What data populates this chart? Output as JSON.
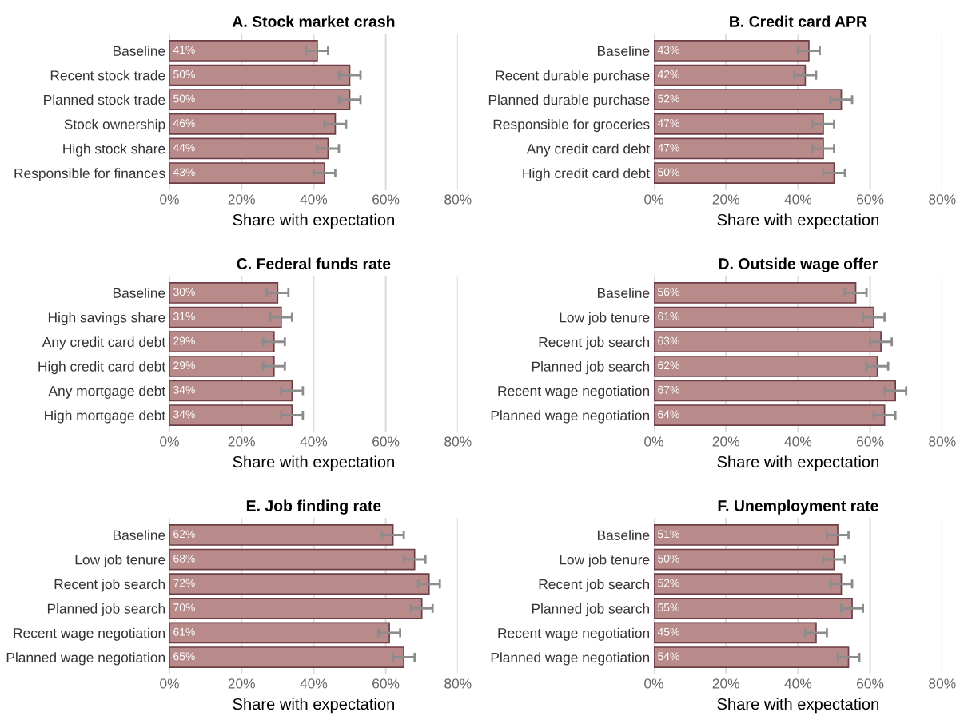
{
  "chart_data": [
    {
      "type": "bar",
      "orientation": "horizontal",
      "title": "A. Stock market crash",
      "xlabel": "Share with expectation",
      "categories": [
        "Baseline",
        "Recent stock trade",
        "Planned stock trade",
        "Stock ownership",
        "High stock share",
        "Responsible for finances"
      ],
      "values": [
        41,
        50,
        50,
        46,
        44,
        43
      ],
      "value_labels": [
        "41%",
        "50%",
        "50%",
        "46%",
        "44%",
        "43%"
      ],
      "errors": [
        3,
        3,
        3,
        3,
        3,
        3
      ],
      "color": "#b88a8a",
      "xlim": [
        0,
        80
      ],
      "xticks": [
        {
          "value": 0,
          "label": "0%"
        },
        {
          "value": 20,
          "label": "20%"
        },
        {
          "value": 40,
          "label": "40%"
        },
        {
          "value": 60,
          "label": "60%"
        },
        {
          "value": 80,
          "label": "80%"
        }
      ],
      "grid": "x"
    },
    {
      "type": "bar",
      "orientation": "horizontal",
      "title": "B. Credit card APR",
      "xlabel": "Share with expectation",
      "categories": [
        "Baseline",
        "Recent durable purchase",
        "Planned durable purchase",
        "Responsible for groceries",
        "Any credit card debt",
        "High credit card debt"
      ],
      "values": [
        43,
        42,
        52,
        47,
        47,
        50
      ],
      "value_labels": [
        "43%",
        "42%",
        "52%",
        "47%",
        "47%",
        "50%"
      ],
      "errors": [
        3,
        3,
        3,
        3,
        3,
        3
      ],
      "color": "#b88a8a",
      "xlim": [
        0,
        80
      ],
      "xticks": [
        {
          "value": 0,
          "label": "0%"
        },
        {
          "value": 20,
          "label": "20%"
        },
        {
          "value": 40,
          "label": "40%"
        },
        {
          "value": 60,
          "label": "60%"
        },
        {
          "value": 80,
          "label": "80%"
        }
      ],
      "grid": "x"
    },
    {
      "type": "bar",
      "orientation": "horizontal",
      "title": "C. Federal funds rate",
      "xlabel": "Share with expectation",
      "categories": [
        "Baseline",
        "High savings share",
        "Any credit card debt",
        "High credit card debt",
        "Any mortgage debt",
        "High mortgage debt"
      ],
      "values": [
        30,
        31,
        29,
        29,
        34,
        34
      ],
      "value_labels": [
        "30%",
        "31%",
        "29%",
        "29%",
        "34%",
        "34%"
      ],
      "errors": [
        3,
        3,
        3,
        3,
        3,
        3
      ],
      "color": "#b88a8a",
      "xlim": [
        0,
        80
      ],
      "xticks": [
        {
          "value": 0,
          "label": "0%"
        },
        {
          "value": 20,
          "label": "20%"
        },
        {
          "value": 40,
          "label": "40%"
        },
        {
          "value": 60,
          "label": "60%"
        },
        {
          "value": 80,
          "label": "80%"
        }
      ],
      "grid": "x"
    },
    {
      "type": "bar",
      "orientation": "horizontal",
      "title": "D. Outside wage offer",
      "xlabel": "Share with expectation",
      "categories": [
        "Baseline",
        "Low job tenure",
        "Recent job search",
        "Planned job search",
        "Recent wage negotiation",
        "Planned wage negotiation"
      ],
      "values": [
        56,
        61,
        63,
        62,
        67,
        64
      ],
      "value_labels": [
        "56%",
        "61%",
        "63%",
        "62%",
        "67%",
        "64%"
      ],
      "errors": [
        3,
        3,
        3,
        3,
        3,
        3
      ],
      "color": "#b88a8a",
      "xlim": [
        0,
        80
      ],
      "xticks": [
        {
          "value": 0,
          "label": "0%"
        },
        {
          "value": 20,
          "label": "20%"
        },
        {
          "value": 40,
          "label": "40%"
        },
        {
          "value": 60,
          "label": "60%"
        },
        {
          "value": 80,
          "label": "80%"
        }
      ],
      "grid": "x"
    },
    {
      "type": "bar",
      "orientation": "horizontal",
      "title": "E. Job finding rate",
      "xlabel": "Share with expectation",
      "categories": [
        "Baseline",
        "Low job tenure",
        "Recent job search",
        "Planned job search",
        "Recent wage negotiation",
        "Planned wage negotiation"
      ],
      "values": [
        62,
        68,
        72,
        70,
        61,
        65
      ],
      "value_labels": [
        "62%",
        "68%",
        "72%",
        "70%",
        "61%",
        "65%"
      ],
      "errors": [
        3,
        3,
        3,
        3,
        3,
        3
      ],
      "color": "#b88a8a",
      "xlim": [
        0,
        80
      ],
      "xticks": [
        {
          "value": 0,
          "label": "0%"
        },
        {
          "value": 20,
          "label": "20%"
        },
        {
          "value": 40,
          "label": "40%"
        },
        {
          "value": 60,
          "label": "60%"
        },
        {
          "value": 80,
          "label": "80%"
        }
      ],
      "grid": "x"
    },
    {
      "type": "bar",
      "orientation": "horizontal",
      "title": "F. Unemployment rate",
      "xlabel": "Share with expectation",
      "categories": [
        "Baseline",
        "Low job tenure",
        "Recent job search",
        "Planned job search",
        "Recent wage negotiation",
        "Planned wage negotiation"
      ],
      "values": [
        51,
        50,
        52,
        55,
        45,
        54
      ],
      "value_labels": [
        "51%",
        "50%",
        "52%",
        "55%",
        "45%",
        "54%"
      ],
      "errors": [
        3,
        3,
        3,
        3,
        3,
        3
      ],
      "color": "#b88a8a",
      "xlim": [
        0,
        80
      ],
      "xticks": [
        {
          "value": 0,
          "label": "0%"
        },
        {
          "value": 20,
          "label": "20%"
        },
        {
          "value": 40,
          "label": "40%"
        },
        {
          "value": 60,
          "label": "60%"
        },
        {
          "value": 80,
          "label": "80%"
        }
      ],
      "grid": "x"
    }
  ]
}
